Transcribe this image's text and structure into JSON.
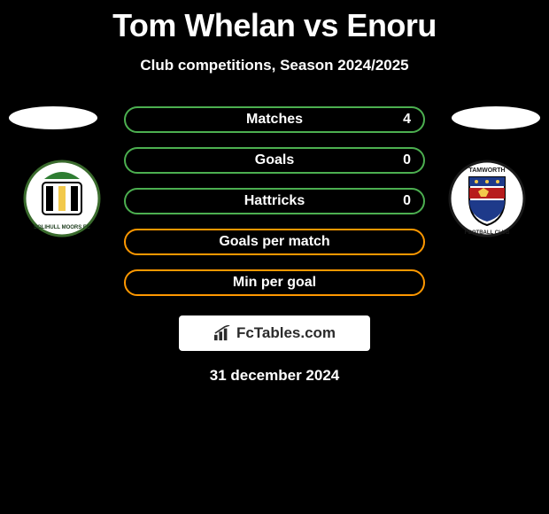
{
  "title": "Tom Whelan vs Enoru",
  "subtitle": "Club competitions, Season 2024/2025",
  "date": "31 december 2024",
  "brand": {
    "text": "FcTables.com"
  },
  "colors": {
    "pill_border_a": "#4caf50",
    "pill_border_b": "#ff9800",
    "badge_left_bg": "#ffffff",
    "badge_right_bg": "#ffffff"
  },
  "stats": [
    {
      "label": "Matches",
      "right_value": "4",
      "border": "a"
    },
    {
      "label": "Goals",
      "right_value": "0",
      "border": "a"
    },
    {
      "label": "Hattricks",
      "right_value": "0",
      "border": "a"
    },
    {
      "label": "Goals per match",
      "right_value": "",
      "border": "b"
    },
    {
      "label": "Min per goal",
      "right_value": "",
      "border": "b"
    }
  ],
  "badges": {
    "left": {
      "name": "solihull-moors-badge"
    },
    "right": {
      "name": "tamworth-badge"
    }
  }
}
